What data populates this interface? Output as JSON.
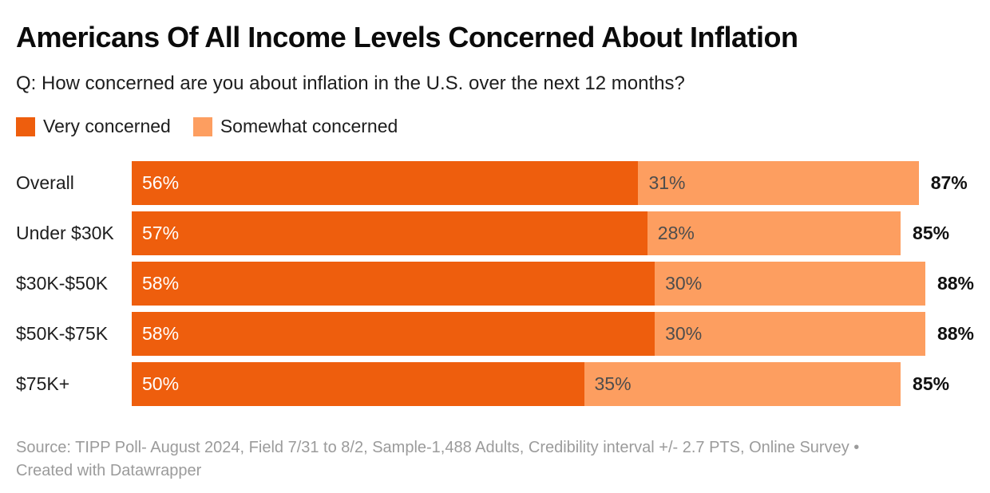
{
  "title": "Americans Of All Income Levels Concerned About Inflation",
  "subtitle": "Q: How concerned are you about inflation in the U.S. over the next 12 months?",
  "legend": {
    "very": {
      "label": "Very concerned",
      "color": "#EE5E0D"
    },
    "somewhat": {
      "label": "Somewhat concerned",
      "color": "#FD9E60"
    }
  },
  "chart_data": {
    "type": "bar",
    "orientation": "horizontal",
    "stacked": true,
    "title": "Americans Of All Income Levels Concerned About Inflation",
    "subtitle": "Q: How concerned are you about inflation in the U.S. over the next 12 months?",
    "categories": [
      "Overall",
      "Under $30K",
      "$30K-$50K",
      "$50K-$75K",
      "$75K+"
    ],
    "series": [
      {
        "name": "Very concerned",
        "color": "#EE5E0D",
        "values": [
          56,
          57,
          58,
          58,
          50
        ]
      },
      {
        "name": "Somewhat concerned",
        "color": "#FD9E60",
        "values": [
          31,
          28,
          30,
          30,
          35
        ]
      }
    ],
    "totals": [
      87,
      85,
      88,
      88,
      85
    ],
    "unit": "%",
    "xlim": [
      0,
      100
    ],
    "grid": false,
    "legend_position": "top",
    "value_labels": "inside-start, totals outside-end"
  },
  "display": {
    "rows": [
      {
        "category": "Overall",
        "very": "56%",
        "somewhat": "31%",
        "total": "87%"
      },
      {
        "category": "Under $30K",
        "very": "57%",
        "somewhat": "28%",
        "total": "85%"
      },
      {
        "category": "$30K-$50K",
        "very": "58%",
        "somewhat": "30%",
        "total": "88%"
      },
      {
        "category": "$50K-$75K",
        "very": "58%",
        "somewhat": "30%",
        "total": "88%"
      },
      {
        "category": "$75K+",
        "very": "50%",
        "somewhat": "35%",
        "total": "85%"
      }
    ]
  },
  "footer": {
    "source_line": "Source: TIPP Poll- August 2024, Field 7/31 to 8/2, Sample-1,488 Adults, Credibility interval +/- 2.7 PTS, Online Survey •",
    "attribution_line": "Created with Datawrapper"
  }
}
